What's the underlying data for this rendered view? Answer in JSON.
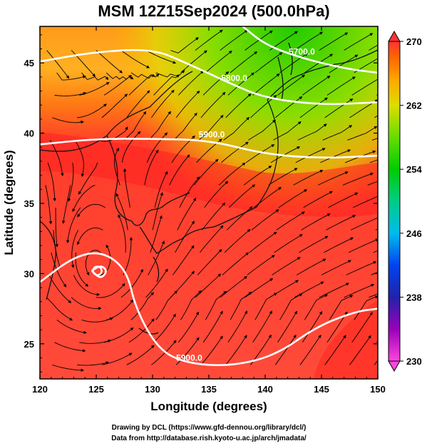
{
  "chart_data": {
    "type": "heatmap",
    "title": "MSM 12Z15Sep2024 (500.0hPa)",
    "xlabel": "Longitude (degrees)",
    "ylabel": "Latitude  (degrees)",
    "xlim": [
      120,
      150
    ],
    "ylim": [
      22.5,
      47.6
    ],
    "x_ticks": [
      120,
      125,
      130,
      135,
      140,
      145,
      150
    ],
    "y_ticks": [
      25,
      30,
      35,
      40,
      45
    ],
    "colorbar": {
      "range": [
        230,
        270
      ],
      "ticks": [
        230,
        238,
        246,
        254,
        262,
        270
      ],
      "colors": [
        [
          230,
          "#ff44dd"
        ],
        [
          234,
          "#9900bb"
        ],
        [
          238,
          "#2222aa"
        ],
        [
          242,
          "#0044ee"
        ],
        [
          246,
          "#00bbee"
        ],
        [
          250,
          "#00cc88"
        ],
        [
          254,
          "#00cc00"
        ],
        [
          258,
          "#66dd00"
        ],
        [
          262,
          "#dddd00"
        ],
        [
          265,
          "#ffaa00"
        ],
        [
          268,
          "#ff6600"
        ],
        [
          270,
          "#ff3333"
        ]
      ]
    },
    "contours": [
      {
        "label": "5700.0",
        "points": [
          [
            138,
            47.6
          ],
          [
            140,
            46.3
          ],
          [
            143,
            45.4
          ],
          [
            147,
            44.6
          ],
          [
            150,
            44.3
          ]
        ]
      },
      {
        "label": "5800.0",
        "points": [
          [
            120,
            45.1
          ],
          [
            125,
            45.8
          ],
          [
            130,
            46.0
          ],
          [
            133,
            45.0
          ],
          [
            137,
            43.5
          ],
          [
            140,
            42.5
          ],
          [
            145,
            42.0
          ],
          [
            150,
            42.2
          ]
        ]
      },
      {
        "label": "5900.0",
        "points": [
          [
            120,
            39.2
          ],
          [
            125,
            39.6
          ],
          [
            130,
            39.6
          ],
          [
            135,
            39.5
          ],
          [
            140,
            38.5
          ],
          [
            145,
            38.2
          ],
          [
            150,
            38.4
          ]
        ]
      },
      {
        "label": "5900.0",
        "points": [
          [
            120,
            29.4
          ],
          [
            123,
            31.2
          ],
          [
            125.5,
            31.6
          ],
          [
            127.7,
            30.3
          ],
          [
            128.5,
            27.5
          ],
          [
            130.5,
            24.6
          ],
          [
            133,
            23.6
          ],
          [
            137,
            23.4
          ],
          [
            141,
            24.2
          ],
          [
            144.5,
            26.2
          ],
          [
            148,
            27.3
          ],
          [
            150,
            27.5
          ]
        ]
      },
      {
        "label": "",
        "points": [
          [
            124.6,
            30.2
          ],
          [
            125.4,
            30.6
          ],
          [
            126.0,
            30.2
          ],
          [
            125.4,
            29.6
          ],
          [
            124.6,
            30.2
          ]
        ]
      }
    ]
  },
  "credits": [
    "Drawing by DCL (https://www.gfd-dennou.org/library/dcl/)",
    "Data from http://database.rish.kyoto-u.ac.jp/arch/jmadata/"
  ]
}
